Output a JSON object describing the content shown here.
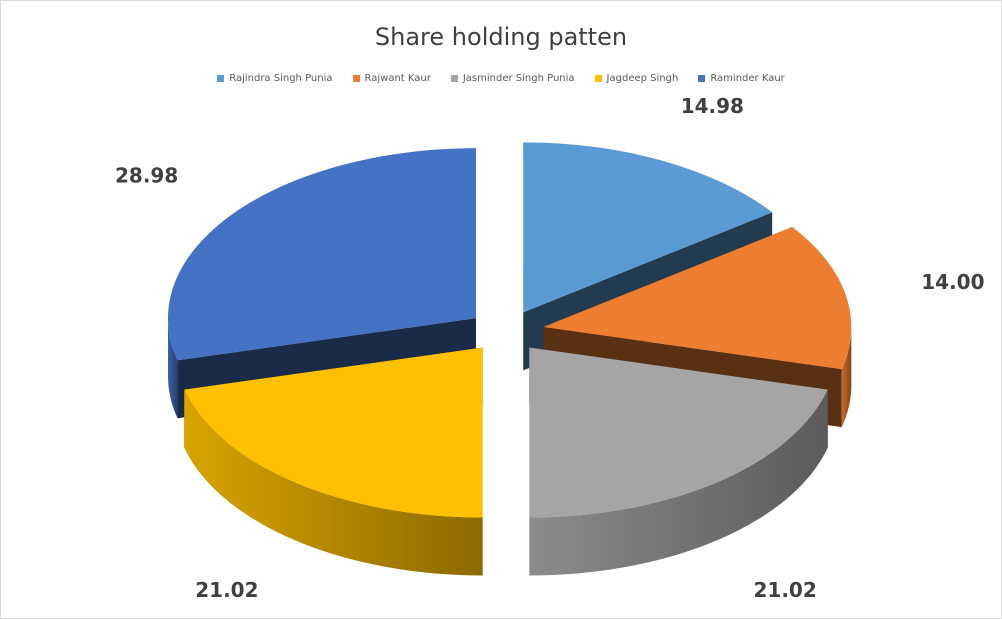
{
  "chart_data": {
    "type": "pie",
    "style": "3d-exploded",
    "title": "Share holding patten",
    "legend_position": "top",
    "categories": [
      "Rajindra Singh Punia",
      "Rajwant Kaur",
      "Jasminder Singh Punia",
      "Jagdeep Singh",
      "Raminder Kaur"
    ],
    "values": [
      14.98,
      14.0,
      21.02,
      21.02,
      28.98
    ],
    "labels": [
      "14.98",
      "14.00",
      "21.02",
      "21.02",
      "28.98"
    ],
    "colors": [
      "#5B9BD5",
      "#ED7D31",
      "#A5A5A5",
      "#FFC000",
      "#4472C4"
    ]
  }
}
